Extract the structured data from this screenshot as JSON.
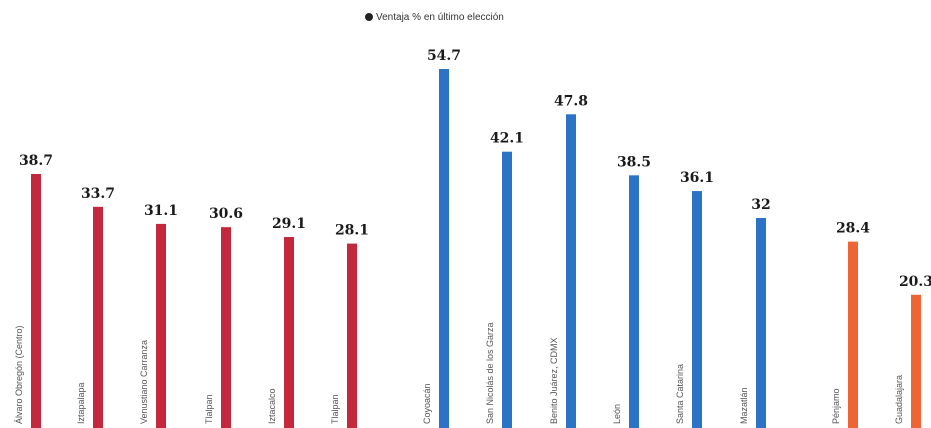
{
  "chart_data": {
    "type": "bar",
    "legend": "Ventaja % en último elección",
    "ylim": [
      0,
      60
    ],
    "colors": {
      "red": "#c4283c",
      "blue": "#2c73c8",
      "orange": "#ee6434"
    },
    "categories": [
      "Álvaro Obregón (Centro)",
      "Iztapalapa",
      "Venustiano Carranza",
      "Tlalpan",
      "Iztacalco",
      "Tlalpan",
      "Coyoacán",
      "San Nicolás de los Garza",
      "Benito Juárez, CDMX",
      "León",
      "Santa Catarina",
      "Mazatlán",
      "Pénjamo",
      "Guadalajara"
    ],
    "values": [
      38.7,
      33.7,
      31.1,
      30.6,
      29.1,
      28.1,
      54.7,
      42.1,
      47.8,
      38.5,
      36.1,
      32,
      28.4,
      20.3
    ],
    "value_labels": [
      "38.7",
      "33.7",
      "31.1",
      "30.6",
      "29.1",
      "28.1",
      "54.7",
      "42.1",
      "47.8",
      "38.5",
      "36.1",
      "32",
      "28.4",
      "20.3"
    ],
    "bar_colors": [
      "red",
      "red",
      "red",
      "red",
      "red",
      "red",
      "blue",
      "blue",
      "blue",
      "blue",
      "blue",
      "blue",
      "orange",
      "orange"
    ]
  }
}
